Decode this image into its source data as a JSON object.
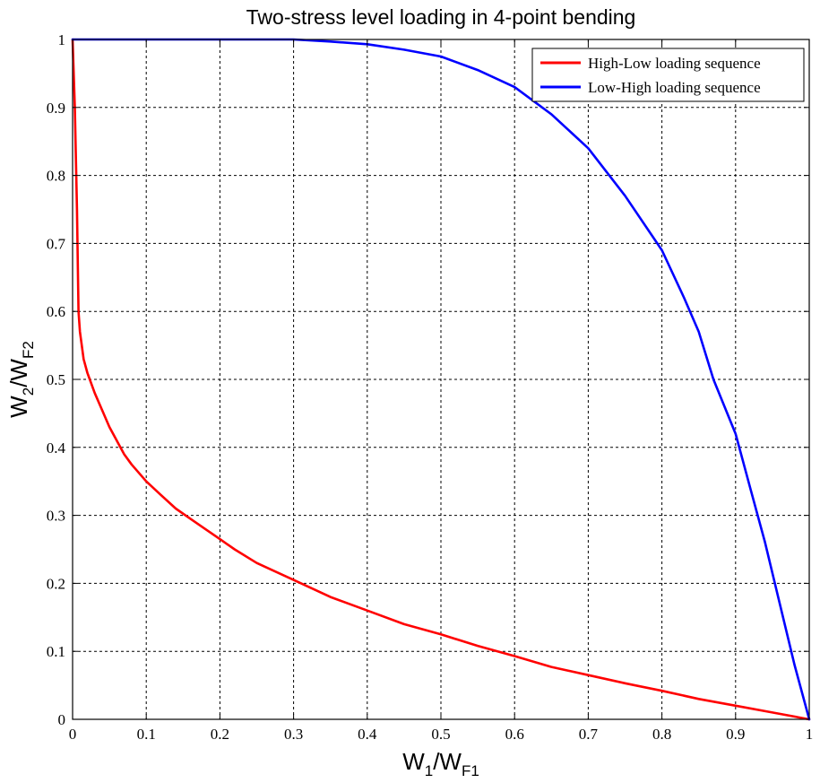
{
  "chart_data": {
    "type": "line",
    "title": "Two-stress level loading in 4-point bending",
    "xlabel": {
      "base": "W",
      "sub1": "1",
      "slash": "/W",
      "sub2": "F1"
    },
    "ylabel": {
      "base": "W",
      "sub1": "2",
      "slash": "/W",
      "sub2": "F2"
    },
    "xlim": [
      0,
      1
    ],
    "ylim": [
      0,
      1
    ],
    "xticks": [
      0,
      0.1,
      0.2,
      0.3,
      0.4,
      0.5,
      0.6,
      0.7,
      0.8,
      0.9,
      1
    ],
    "xtick_labels": [
      "0",
      "0.1",
      "0.2",
      "0.3",
      "0.4",
      "0.5",
      "0.6",
      "0.7",
      "0.8",
      "0.9",
      "1"
    ],
    "yticks": [
      0,
      0.1,
      0.2,
      0.3,
      0.4,
      0.5,
      0.6,
      0.7,
      0.8,
      0.9,
      1
    ],
    "ytick_labels": [
      "0",
      "0.1",
      "0.2",
      "0.3",
      "0.4",
      "0.5",
      "0.6",
      "0.7",
      "0.8",
      "0.9",
      "1"
    ],
    "grid": true,
    "legend_position": "top-right",
    "series": [
      {
        "name": "High-Low loading sequence",
        "color": "#ff0000",
        "x": [
          0,
          0.003,
          0.006,
          0.008,
          0.01,
          0.015,
          0.02,
          0.03,
          0.04,
          0.05,
          0.06,
          0.07,
          0.08,
          0.1,
          0.12,
          0.14,
          0.16,
          0.18,
          0.2,
          0.22,
          0.25,
          0.3,
          0.35,
          0.4,
          0.45,
          0.5,
          0.55,
          0.6,
          0.65,
          0.7,
          0.75,
          0.8,
          0.85,
          0.9,
          0.95,
          1.0
        ],
        "y": [
          1.0,
          0.9,
          0.75,
          0.6,
          0.57,
          0.53,
          0.51,
          0.48,
          0.455,
          0.43,
          0.41,
          0.39,
          0.375,
          0.35,
          0.33,
          0.31,
          0.295,
          0.28,
          0.265,
          0.25,
          0.23,
          0.205,
          0.18,
          0.16,
          0.14,
          0.125,
          0.108,
          0.093,
          0.077,
          0.065,
          0.053,
          0.042,
          0.03,
          0.02,
          0.01,
          0.0
        ]
      },
      {
        "name": "Low-High loading sequence",
        "color": "#0000ff",
        "x": [
          0.0,
          0.1,
          0.2,
          0.3,
          0.35,
          0.4,
          0.45,
          0.5,
          0.55,
          0.6,
          0.65,
          0.7,
          0.75,
          0.8,
          0.83,
          0.85,
          0.87,
          0.9,
          0.92,
          0.94,
          0.96,
          0.98,
          1.0
        ],
        "y": [
          1.0,
          1.0,
          1.0,
          1.0,
          0.997,
          0.993,
          0.985,
          0.975,
          0.955,
          0.93,
          0.89,
          0.84,
          0.77,
          0.69,
          0.62,
          0.57,
          0.5,
          0.42,
          0.34,
          0.26,
          0.17,
          0.08,
          0.0
        ]
      }
    ]
  }
}
